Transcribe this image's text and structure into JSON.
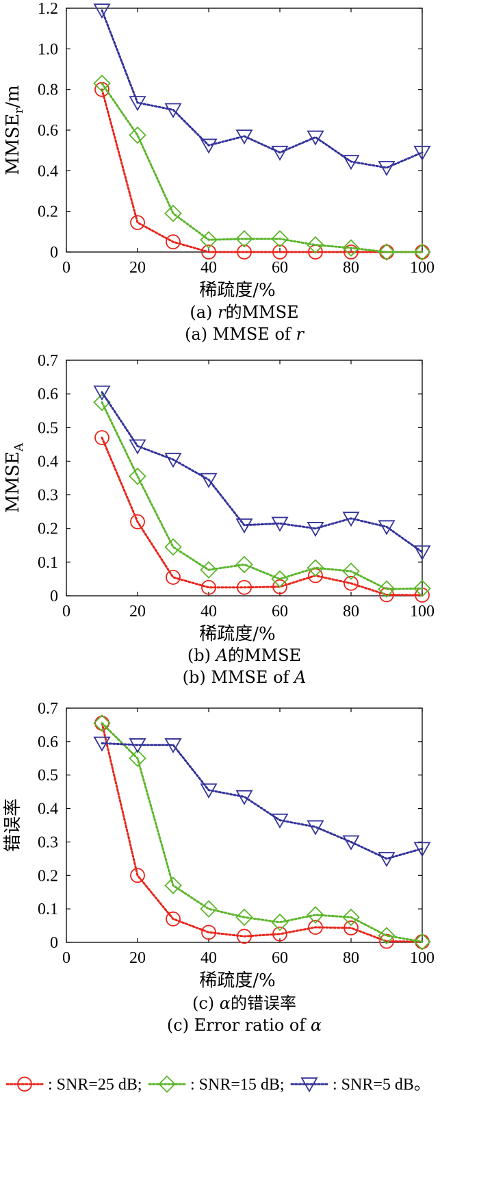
{
  "chart_data": [
    {
      "type": "line",
      "ylabel_main": "MMSE",
      "ylabel_sub": "r",
      "ylabel_tail": "/m",
      "xlabel": "稀疏度/%",
      "caption_cn_prefix": "(a) ",
      "caption_cn_var": "r",
      "caption_cn_suffix": "的MMSE",
      "caption_en_prefix": "(a) MMSE of ",
      "caption_en_var": "r",
      "x": [
        10,
        20,
        30,
        40,
        50,
        60,
        70,
        80,
        90,
        100
      ],
      "xlim": [
        0,
        100
      ],
      "xticks": [
        "0",
        "20",
        "40",
        "60",
        "80",
        "100"
      ],
      "ylim": [
        0,
        1.2
      ],
      "yticks": [
        "0",
        "0.2",
        "0.4",
        "0.6",
        "0.8",
        "1.0",
        "1.2"
      ],
      "series": [
        {
          "name": "SNR=25 dB",
          "color": "#e8251b",
          "marker": "circle",
          "values": [
            0.8,
            0.145,
            0.05,
            0.0,
            0.0,
            0.0,
            0.0,
            0.0,
            0.0,
            0.0
          ]
        },
        {
          "name": "SNR=15 dB",
          "color": "#5bb52a",
          "marker": "diamond",
          "values": [
            0.83,
            0.575,
            0.19,
            0.06,
            0.065,
            0.065,
            0.035,
            0.02,
            0.0,
            0.0
          ]
        },
        {
          "name": "SNR=5 dB",
          "color": "#33339a",
          "marker": "triangle-down",
          "values": [
            1.19,
            0.735,
            0.7,
            0.525,
            0.57,
            0.49,
            0.565,
            0.445,
            0.415,
            0.49
          ]
        }
      ]
    },
    {
      "type": "line",
      "ylabel_main": "MMSE",
      "ylabel_sub": "A",
      "ylabel_tail": "",
      "xlabel": "稀疏度/%",
      "caption_cn_prefix": "(b) ",
      "caption_cn_var": "A",
      "caption_cn_suffix": "的MMSE",
      "caption_en_prefix": "(b) MMSE of ",
      "caption_en_var": "A",
      "x": [
        10,
        20,
        30,
        40,
        50,
        60,
        70,
        80,
        90,
        100
      ],
      "xlim": [
        0,
        100
      ],
      "xticks": [
        "0",
        "20",
        "40",
        "60",
        "80",
        "100"
      ],
      "ylim": [
        0,
        0.7
      ],
      "yticks": [
        "0",
        "0.1",
        "0.2",
        "0.3",
        "0.4",
        "0.5",
        "0.6",
        "0.7"
      ],
      "series": [
        {
          "name": "SNR=25 dB",
          "color": "#e8251b",
          "marker": "circle",
          "values": [
            0.47,
            0.22,
            0.055,
            0.025,
            0.025,
            0.027,
            0.06,
            0.037,
            0.003,
            0.002
          ]
        },
        {
          "name": "SNR=15 dB",
          "color": "#5bb52a",
          "marker": "diamond",
          "values": [
            0.575,
            0.355,
            0.145,
            0.077,
            0.093,
            0.05,
            0.083,
            0.073,
            0.02,
            0.022
          ]
        },
        {
          "name": "SNR=5 dB",
          "color": "#33339a",
          "marker": "triangle-down",
          "values": [
            0.605,
            0.445,
            0.405,
            0.345,
            0.21,
            0.215,
            0.2,
            0.23,
            0.205,
            0.13
          ]
        }
      ]
    },
    {
      "type": "line",
      "ylabel_main": "错误率",
      "ylabel_sub": "",
      "ylabel_tail": "",
      "xlabel": "稀疏度/%",
      "caption_cn_prefix": "(c) ",
      "caption_cn_var": "α",
      "caption_cn_suffix": "的错误率",
      "caption_en_prefix": "(c) Error ratio of ",
      "caption_en_var": "α",
      "x": [
        10,
        20,
        30,
        40,
        50,
        60,
        70,
        80,
        90,
        100
      ],
      "xlim": [
        0,
        100
      ],
      "xticks": [
        "0",
        "20",
        "40",
        "60",
        "80",
        "100"
      ],
      "ylim": [
        0,
        0.7
      ],
      "yticks": [
        "0",
        "0.1",
        "0.2",
        "0.3",
        "0.4",
        "0.5",
        "0.6",
        "0.7"
      ],
      "series": [
        {
          "name": "SNR=25 dB",
          "color": "#e8251b",
          "marker": "circle",
          "values": [
            0.655,
            0.2,
            0.07,
            0.03,
            0.018,
            0.025,
            0.045,
            0.043,
            0.003,
            0.002
          ]
        },
        {
          "name": "SNR=15 dB",
          "color": "#5bb52a",
          "marker": "diamond",
          "values": [
            0.655,
            0.55,
            0.17,
            0.1,
            0.075,
            0.06,
            0.082,
            0.075,
            0.02,
            0.002
          ]
        },
        {
          "name": "SNR=5 dB",
          "color": "#33339a",
          "marker": "triangle-down",
          "values": [
            0.595,
            0.59,
            0.59,
            0.455,
            0.435,
            0.365,
            0.345,
            0.3,
            0.25,
            0.28
          ]
        }
      ]
    }
  ],
  "legend": {
    "items": [
      {
        "label": ": SNR=25 dB;",
        "color": "#e8251b",
        "marker": "circle"
      },
      {
        "label": ": SNR=15 dB;",
        "color": "#5bb52a",
        "marker": "diamond"
      },
      {
        "label": ": SNR=5 dB。",
        "color": "#33339a",
        "marker": "triangle-down"
      }
    ]
  }
}
